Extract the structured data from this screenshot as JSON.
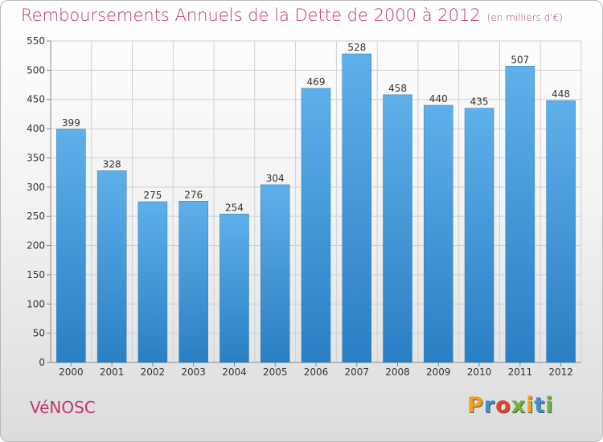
{
  "header": {
    "title": "Remboursements Annuels de la Dette de 2000 à 2012",
    "unit": "(en milliers d'€)"
  },
  "footer": {
    "commune": "VéNOSC",
    "logo_text": "Proxiti"
  },
  "colors": {
    "title": "#c0356d",
    "bar_top": "#5eb0ea",
    "bar_bottom": "#2a7fc4",
    "grid": "#d0d0d0"
  },
  "chart_data": {
    "type": "bar",
    "title": "Remboursements Annuels de la Dette de 2000 à 2012",
    "xlabel": "",
    "ylabel": "",
    "categories": [
      "2000",
      "2001",
      "2002",
      "2003",
      "2004",
      "2005",
      "2006",
      "2007",
      "2008",
      "2009",
      "2010",
      "2011",
      "2012"
    ],
    "values": [
      399,
      328,
      275,
      276,
      254,
      304,
      469,
      528,
      458,
      440,
      435,
      507,
      448
    ],
    "ylim": [
      0,
      550
    ],
    "yticks": [
      0,
      50,
      100,
      150,
      200,
      250,
      300,
      350,
      400,
      450,
      500,
      550
    ],
    "grid": true,
    "data_labels": true
  }
}
